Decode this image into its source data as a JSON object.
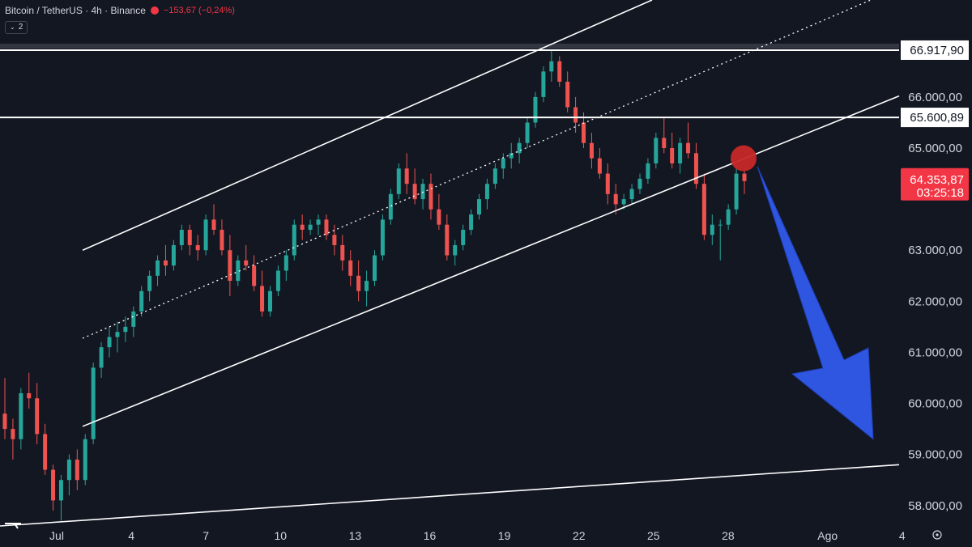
{
  "header": {
    "symbol": "Bitcoin / TetherUS · 4h · Binance",
    "change": "−153,67 (−0,24%)",
    "indicator_count": "2"
  },
  "colors": {
    "background": "#131722",
    "up": "#26a69a",
    "down": "#ef5350",
    "line": "#ffffff",
    "arrow": "#2f56e0",
    "marker": "#c62828",
    "last_price": "#f23645"
  },
  "chart_data": {
    "type": "candlestick",
    "symbol": "BTCUSDT",
    "timeframe": "4h",
    "ylim": [
      57600,
      67900
    ],
    "price_ticks": [
      "66.000,00",
      "65.000,00",
      "63.000,00",
      "62.000,00",
      "61.000,00",
      "60.000,00",
      "59.000,00",
      "58.000,00"
    ],
    "time_ticks": [
      {
        "label": "Jul",
        "day": 1
      },
      {
        "label": "4",
        "day": 4
      },
      {
        "label": "7",
        "day": 7
      },
      {
        "label": "10",
        "day": 10
      },
      {
        "label": "13",
        "day": 13
      },
      {
        "label": "16",
        "day": 16
      },
      {
        "label": "19",
        "day": 19
      },
      {
        "label": "22",
        "day": 22
      },
      {
        "label": "25",
        "day": 25
      },
      {
        "label": "28",
        "day": 28
      },
      {
        "label": "Ago",
        "day": 32
      },
      {
        "label": "4",
        "day": 35
      }
    ],
    "candles": [
      [
        59800,
        60500,
        59300,
        59500
      ],
      [
        59500,
        59700,
        58900,
        59300
      ],
      [
        59300,
        60300,
        59100,
        60200
      ],
      [
        60200,
        60600,
        59900,
        60100
      ],
      [
        60100,
        60400,
        59200,
        59400
      ],
      [
        59400,
        59600,
        58600,
        58700
      ],
      [
        58700,
        58800,
        57900,
        58100
      ],
      [
        58100,
        58600,
        57700,
        58500
      ],
      [
        58500,
        59000,
        58200,
        58900
      ],
      [
        58900,
        59100,
        58300,
        58500
      ],
      [
        58500,
        59400,
        58400,
        59300
      ],
      [
        59300,
        60800,
        59200,
        60700
      ],
      [
        60700,
        61200,
        60500,
        61100
      ],
      [
        61100,
        61500,
        60900,
        61300
      ],
      [
        61300,
        61600,
        61000,
        61400
      ],
      [
        61400,
        61700,
        61200,
        61500
      ],
      [
        61500,
        61900,
        61300,
        61800
      ],
      [
        61800,
        62300,
        61700,
        62200
      ],
      [
        62200,
        62600,
        62000,
        62500
      ],
      [
        62500,
        62900,
        62300,
        62800
      ],
      [
        62800,
        63100,
        62500,
        62700
      ],
      [
        62700,
        63200,
        62600,
        63100
      ],
      [
        63100,
        63500,
        63000,
        63400
      ],
      [
        63400,
        63500,
        62900,
        63100
      ],
      [
        63100,
        63300,
        62800,
        63000
      ],
      [
        63000,
        63700,
        62900,
        63600
      ],
      [
        63600,
        63900,
        63300,
        63400
      ],
      [
        63400,
        63600,
        62900,
        63000
      ],
      [
        63000,
        63300,
        62100,
        62400
      ],
      [
        62400,
        62900,
        62300,
        62800
      ],
      [
        62800,
        63100,
        62600,
        62700
      ],
      [
        62700,
        62900,
        62200,
        62300
      ],
      [
        62300,
        62600,
        61700,
        61800
      ],
      [
        61800,
        62300,
        61700,
        62200
      ],
      [
        62200,
        62700,
        62100,
        62600
      ],
      [
        62600,
        63000,
        62400,
        62900
      ],
      [
        62900,
        63600,
        62800,
        63500
      ],
      [
        63500,
        63700,
        63200,
        63400
      ],
      [
        63400,
        63600,
        63300,
        63500
      ],
      [
        63500,
        63700,
        63300,
        63600
      ],
      [
        63600,
        63700,
        63200,
        63300
      ],
      [
        63300,
        63500,
        62900,
        63100
      ],
      [
        63100,
        63300,
        62600,
        62800
      ],
      [
        62800,
        63000,
        62300,
        62500
      ],
      [
        62500,
        62800,
        62000,
        62200
      ],
      [
        62200,
        62600,
        61900,
        62400
      ],
      [
        62400,
        63000,
        62300,
        62900
      ],
      [
        62900,
        63700,
        62800,
        63600
      ],
      [
        63600,
        64200,
        63500,
        64100
      ],
      [
        64100,
        64700,
        64000,
        64600
      ],
      [
        64600,
        64900,
        64100,
        64300
      ],
      [
        64300,
        64600,
        63900,
        64000
      ],
      [
        64000,
        64400,
        63800,
        64300
      ],
      [
        64300,
        64500,
        63600,
        63800
      ],
      [
        63800,
        64100,
        63400,
        63500
      ],
      [
        63500,
        63700,
        62800,
        62900
      ],
      [
        62900,
        63200,
        62700,
        63100
      ],
      [
        63100,
        63500,
        63000,
        63400
      ],
      [
        63400,
        63800,
        63300,
        63700
      ],
      [
        63700,
        64100,
        63600,
        64000
      ],
      [
        64000,
        64400,
        63800,
        64300
      ],
      [
        64300,
        64700,
        64200,
        64600
      ],
      [
        64600,
        64900,
        64400,
        64800
      ],
      [
        64800,
        65100,
        64600,
        64900
      ],
      [
        64900,
        65200,
        64700,
        65100
      ],
      [
        65100,
        65600,
        65000,
        65500
      ],
      [
        65500,
        66100,
        65400,
        66000
      ],
      [
        66000,
        66600,
        65900,
        66500
      ],
      [
        66500,
        66900,
        66300,
        66700
      ],
      [
        66700,
        66800,
        66200,
        66300
      ],
      [
        66300,
        66500,
        65700,
        65800
      ],
      [
        65800,
        66000,
        65300,
        65500
      ],
      [
        65500,
        65700,
        65000,
        65100
      ],
      [
        65100,
        65300,
        64600,
        64800
      ],
      [
        64800,
        65000,
        64400,
        64500
      ],
      [
        64500,
        64700,
        63900,
        64100
      ],
      [
        64100,
        64300,
        63700,
        63900
      ],
      [
        63900,
        64100,
        63800,
        64000
      ],
      [
        64000,
        64300,
        63900,
        64200
      ],
      [
        64200,
        64500,
        64100,
        64400
      ],
      [
        64400,
        64800,
        64300,
        64700
      ],
      [
        64700,
        65300,
        64600,
        65200
      ],
      [
        65200,
        65600,
        64900,
        65000
      ],
      [
        65000,
        65300,
        64600,
        64700
      ],
      [
        64700,
        65200,
        64500,
        65100
      ],
      [
        65100,
        65500,
        64800,
        64900
      ],
      [
        64900,
        65100,
        64200,
        64300
      ],
      [
        64300,
        64500,
        63200,
        63300
      ],
      [
        63300,
        63700,
        63100,
        63500
      ],
      [
        63500,
        63600,
        62800,
        63500
      ],
      [
        63500,
        63900,
        63400,
        63800
      ],
      [
        63800,
        64700,
        63700,
        64500
      ],
      [
        64500,
        64700,
        64100,
        64354
      ]
    ],
    "last_price": "64.353,87",
    "countdown": "03:25:18",
    "levels": [
      {
        "price": 66917.9,
        "label": "66.917,90"
      },
      {
        "price": 65600.89,
        "label": "65.600,89"
      }
    ],
    "channel": {
      "upper": [
        [
          102,
          63000
        ],
        [
          805,
          67900
        ]
      ],
      "lower": [
        [
          102,
          59550
        ],
        [
          1110,
          66020
        ]
      ],
      "mid": [
        [
          102,
          61275
        ],
        [
          1075,
          67900
        ]
      ],
      "support": [
        [
          0,
          57600
        ],
        [
          1110,
          58800
        ]
      ]
    },
    "annotations": {
      "marker_price": 64800,
      "arrow_target_price": 59300
    }
  }
}
